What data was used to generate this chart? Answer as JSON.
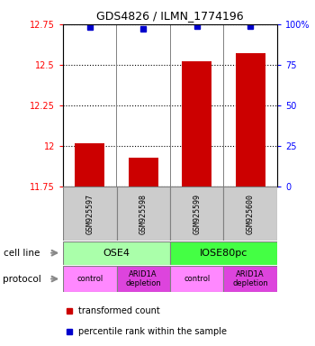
{
  "title": "GDS4826 / ILMN_1774196",
  "samples": [
    "GSM925597",
    "GSM925598",
    "GSM925599",
    "GSM925600"
  ],
  "bar_values": [
    12.02,
    11.93,
    12.52,
    12.57
  ],
  "percentile_values": [
    98,
    97,
    99,
    99
  ],
  "bar_color": "#cc0000",
  "dot_color": "#0000cc",
  "ylim_left": [
    11.75,
    12.75
  ],
  "ylim_right": [
    0,
    100
  ],
  "yticks_left": [
    11.75,
    12.0,
    12.25,
    12.5,
    12.75
  ],
  "yticks_right": [
    0,
    25,
    50,
    75,
    100
  ],
  "ytick_labels_left": [
    "11.75",
    "12",
    "12.25",
    "12.5",
    "12.75"
  ],
  "ytick_labels_right": [
    "0",
    "25",
    "50",
    "75",
    "100%"
  ],
  "cell_line_groups": [
    {
      "label": "OSE4",
      "color": "#aaffaa",
      "span": [
        0,
        2
      ]
    },
    {
      "label": "IOSE80pc",
      "color": "#44ff44",
      "span": [
        2,
        4
      ]
    }
  ],
  "protocol_groups": [
    {
      "label": "control",
      "color": "#ff88ff",
      "span": [
        0,
        1
      ]
    },
    {
      "label": "ARID1A\ndepletion",
      "color": "#dd44dd",
      "span": [
        1,
        2
      ]
    },
    {
      "label": "control",
      "color": "#ff88ff",
      "span": [
        2,
        3
      ]
    },
    {
      "label": "ARID1A\ndepletion",
      "color": "#dd44dd",
      "span": [
        3,
        4
      ]
    }
  ],
  "cell_line_label": "cell line",
  "protocol_label": "protocol",
  "legend_bar_label": "transformed count",
  "legend_dot_label": "percentile rank within the sample",
  "bar_width": 0.55,
  "x_positions": [
    1,
    2,
    3,
    4
  ],
  "sample_bg_color": "#cccccc"
}
